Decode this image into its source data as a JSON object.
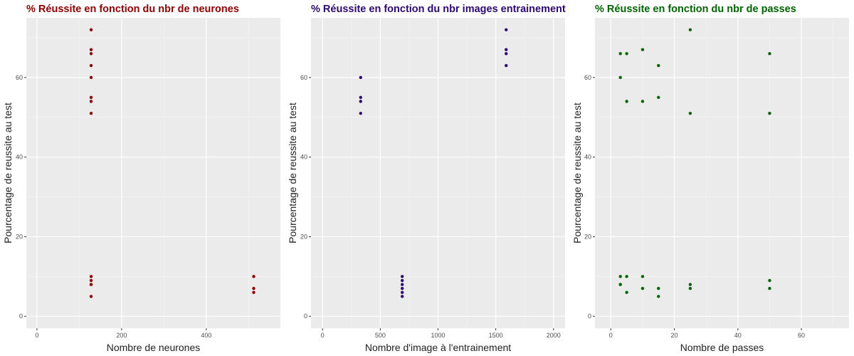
{
  "chart_data": [
    {
      "type": "scatter",
      "title": "% Réussite en fonction du nbr de neurones",
      "title_color": "#8b0000",
      "point_color": "#8b0000",
      "xlabel": "Nombre de neurones",
      "ylabel": "Pourcentage de reussite au test",
      "xlim": [
        -25,
        575
      ],
      "ylim": [
        -3,
        75
      ],
      "xticks": [
        0,
        200,
        400
      ],
      "yticks": [
        0,
        20,
        40,
        60
      ],
      "grid": true,
      "x": [
        128,
        128,
        128,
        128,
        128,
        128,
        128,
        128,
        128,
        128,
        128,
        128,
        128,
        512,
        512,
        512
      ],
      "y": [
        72,
        67,
        66,
        63,
        60,
        55,
        54,
        51,
        10,
        9,
        8,
        8,
        5,
        10,
        7,
        6
      ]
    },
    {
      "type": "scatter",
      "title": "% Réussite en fonction du nbr images entrainement",
      "title_color": "#2e0a6e",
      "point_color": "#2e0a6e",
      "xlabel": "Nombre d'image à l'entrainement",
      "ylabel": "Pourcentage de reussite au test",
      "xlim": [
        -100,
        2100
      ],
      "ylim": [
        -3,
        75
      ],
      "xticks": [
        0,
        500,
        1000,
        1500,
        2000
      ],
      "yticks": [
        0,
        20,
        40,
        60
      ],
      "grid": true,
      "x": [
        330,
        330,
        330,
        330,
        690,
        690,
        690,
        690,
        690,
        690,
        1590,
        1590,
        1590,
        1590
      ],
      "y": [
        60,
        55,
        54,
        51,
        10,
        9,
        8,
        7,
        6,
        5,
        72,
        67,
        66,
        63
      ]
    },
    {
      "type": "scatter",
      "title": "% Réussite en fonction du nbr de passes",
      "title_color": "#006400",
      "point_color": "#006400",
      "xlabel": "Nombre de passes",
      "ylabel": "Pourcentage de reussite au test",
      "xlim": [
        -5,
        75
      ],
      "ylim": [
        -3,
        75
      ],
      "xticks": [
        0,
        20,
        40,
        60
      ],
      "yticks": [
        0,
        20,
        40,
        60
      ],
      "grid": true,
      "x": [
        3,
        3,
        5,
        10,
        15,
        15,
        25,
        25,
        50,
        50,
        3,
        5,
        10,
        3,
        5,
        10,
        15,
        25,
        50,
        3,
        5,
        10,
        15,
        25,
        50
      ],
      "y": [
        66,
        60,
        66,
        67,
        63,
        55,
        72,
        51,
        66,
        51,
        10,
        10,
        10,
        8,
        6,
        7,
        7,
        8,
        9,
        8,
        54,
        54,
        5,
        7,
        7
      ]
    }
  ]
}
